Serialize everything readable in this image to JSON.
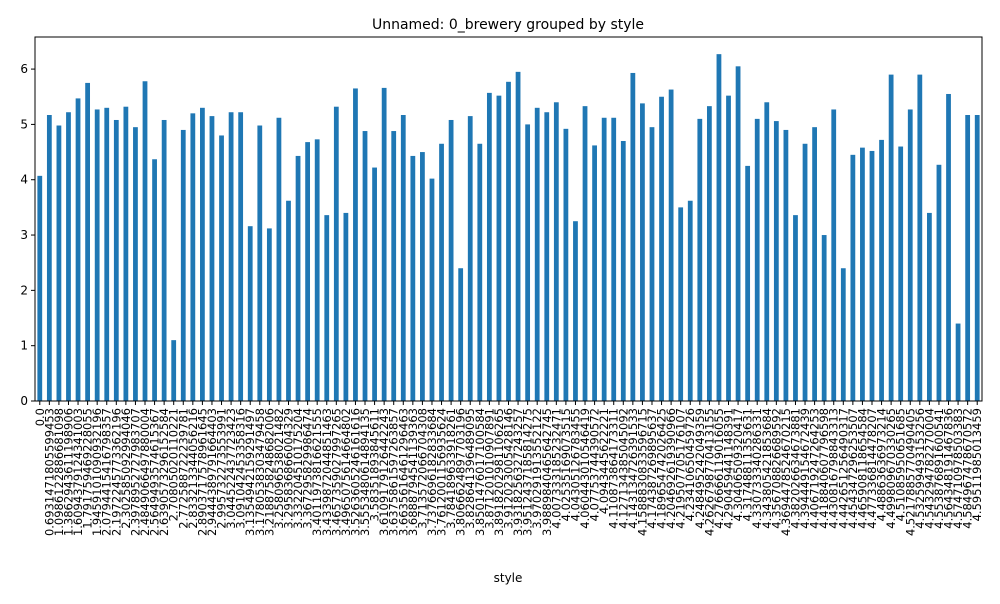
{
  "chart_data": {
    "type": "bar",
    "title": "Unnamed: 0_brewery grouped by style",
    "x_label": "style",
    "categories": [
      "0.0",
      "0.6931471805599453",
      "1.0986122886681098",
      "1.3862943611198906",
      "1.6094379124341003",
      "1.791759469228055",
      "1.9459101090932196",
      "2.0794415416798357",
      "2.1972245773362196",
      "2.302585092994046",
      "2.3978952727983707",
      "2.4849066497880004",
      "2.5649493574615367",
      "2.6390573296152584",
      "2.70805020110221",
      "2.772588722239781",
      "2.833213344056216",
      "2.8903717578961645",
      "2.9444389791664403",
      "2.995732273553991",
      "3.044522437723423",
      "3.091042453358316",
      "3.1354942159291497",
      "3.1780538303479458",
      "3.2188758248682006",
      "3.258096538021482",
      "3.295836866004329",
      "3.332204510175204",
      "3.367295829986474",
      "3.4011973816621555",
      "3.4339872044851463",
      "3.4657359027997265",
      "3.4965075614664802",
      "3.5263605246161616",
      "3.5553480614894135",
      "3.58351893845611",
      "3.6109179126442243",
      "3.6375861597263857",
      "3.6635616461296463",
      "3.6888794541139363",
      "3.713572066704308",
      "3.7376696182833684",
      "3.7612001156935624",
      "3.784189633918261",
      "3.8066624897703196",
      "3.828641396489095",
      "3.8501476017100584",
      "3.871201010907891",
      "3.8918202981106265",
      "3.912023005428146",
      "3.9318256327243257",
      "3.9512437185814275",
      "3.970291913552122",
      "3.9889840465642745",
      "4.007333185232471",
      "4.02535169073515",
      "4.04305126783455",
      "4.060443010546419",
      "4.07753744390572",
      "4.0943445622221",
      "4.110873864173311",
      "4.127134385045092",
      "4.143134726391533",
      "4.1588830833596715",
      "4.174387269895637",
      "4.189654742026425",
      "4.204692619390966",
      "4.219507705176107",
      "4.23410650459726",
      "4.248495242049359",
      "4.2626798770413155",
      "4.276666119016055",
      "4.290459441148391",
      "4.30406509320417",
      "4.31748811353631",
      "4.330733340286331",
      "4.343805421853684",
      "4.356708826689592",
      "4.3694478524670215",
      "4.382026634673881",
      "4.394449154672439",
      "4.406719247264253",
      "4.418840607796598",
      "4.430816798843313",
      "4.442651256490317",
      "4.454347296253507",
      "4.465908118654584",
      "4.477336814478207",
      "4.48863636973214",
      "4.499809670330265",
      "4.51085950651685",
      "4.5217885770490405",
      "4.532599493153256",
      "4.543294782270004",
      "4.553876891600541",
      "4.564348191467836",
      "4.574710978503383",
      "4.584967478670572",
      "4.59511985013459"
    ],
    "values": [
      4.07,
      5.17,
      4.98,
      5.22,
      5.47,
      5.75,
      5.27,
      5.3,
      5.08,
      5.32,
      4.95,
      5.78,
      4.37,
      5.08,
      1.1,
      4.9,
      5.2,
      5.3,
      5.15,
      4.8,
      5.22,
      5.22,
      3.16,
      4.98,
      3.12,
      5.12,
      3.62,
      4.43,
      4.68,
      4.73,
      3.36,
      5.32,
      3.4,
      5.65,
      4.88,
      4.22,
      5.66,
      4.88,
      5.17,
      4.43,
      4.5,
      4.02,
      4.65,
      5.08,
      2.4,
      5.15,
      4.65,
      5.57,
      5.52,
      5.77,
      5.95,
      5.0,
      5.3,
      5.22,
      5.4,
      4.92,
      3.25,
      5.33,
      4.62,
      5.12,
      5.12,
      4.7,
      5.93,
      5.38,
      4.95,
      5.5,
      5.63,
      3.5,
      3.62,
      5.1,
      5.33,
      6.27,
      5.52,
      6.05,
      4.25,
      5.1,
      5.4,
      5.06,
      4.9,
      3.36,
      4.65,
      4.95,
      3.0,
      5.27,
      2.4,
      4.45,
      4.58,
      4.52,
      4.72,
      5.9,
      4.6,
      5.27,
      5.9,
      3.4,
      4.27,
      5.55,
      1.4,
      5.17,
      5.17
    ],
    "color": "#1f77b4",
    "ylim": [
      0,
      6.58
    ],
    "yticks": [
      0,
      1,
      2,
      3,
      4,
      5,
      6
    ],
    "grid": false
  }
}
